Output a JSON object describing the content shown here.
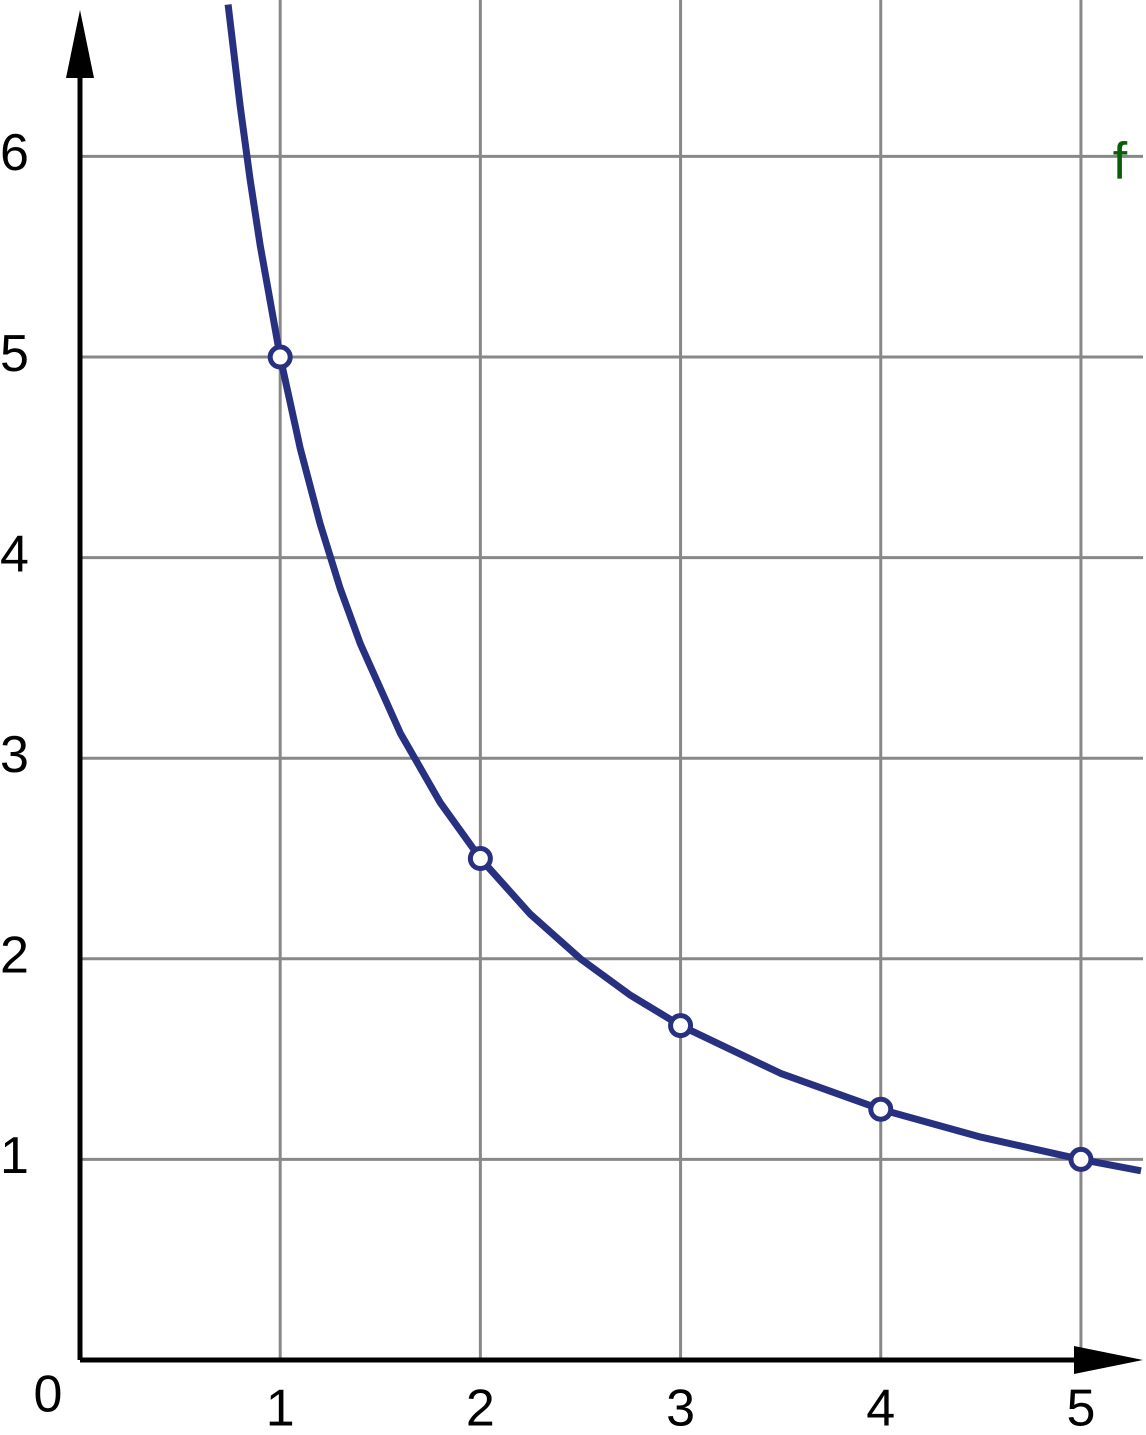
{
  "chart_data": {
    "type": "line",
    "origin_label": "0",
    "xlim": [
      0,
      5.31
    ],
    "ylim": [
      0,
      6.73
    ],
    "xticks": [
      1,
      2,
      3,
      4,
      5
    ],
    "yticks": [
      1,
      2,
      3,
      4,
      5,
      6
    ],
    "grid": true,
    "grid_color": "#888888",
    "axis_color": "#000000",
    "series": [
      {
        "name": "f",
        "color": "#283080",
        "label_color": "#0a5c0a",
        "x": [
          0.74,
          0.8,
          0.85,
          0.9,
          1,
          1.1,
          1.2,
          1.3,
          1.4,
          1.6,
          1.8,
          2,
          2.25,
          2.5,
          2.75,
          3,
          3.5,
          4,
          4.5,
          5,
          5.3
        ],
        "values": [
          6.757,
          6.25,
          5.882,
          5.556,
          5,
          4.545,
          4.167,
          3.846,
          3.571,
          3.125,
          2.778,
          2.5,
          2.222,
          2,
          1.818,
          1.667,
          1.429,
          1.25,
          1.111,
          1,
          0.943
        ]
      },
      {
        "color": "#283080",
        "marker": "open-circle",
        "x": [
          1,
          2,
          3,
          4,
          5
        ],
        "values": [
          5,
          2.5,
          1.667,
          1.25,
          1
        ]
      }
    ]
  }
}
